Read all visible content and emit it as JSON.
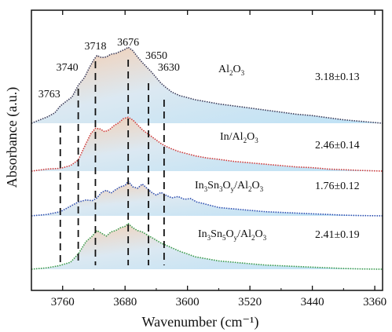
{
  "chart_data": {
    "type": "area",
    "title": "",
    "xlabel": "Wavenumber (cm⁻¹)",
    "ylabel": "Absorbance (a.u.)",
    "xlim": [
      3800,
      3350
    ],
    "x_reversed": true,
    "x_ticks": [
      3760,
      3680,
      3600,
      3520,
      3440,
      3360
    ],
    "y_ticks_shown": false,
    "grid": false,
    "legend": "none",
    "peak_lines": [
      {
        "label": "3763",
        "x": 3763
      },
      {
        "label": "3740",
        "x": 3740
      },
      {
        "label": "3718",
        "x": 3718
      },
      {
        "label": "3676",
        "x": 3676
      },
      {
        "label": "3650",
        "x": 3650
      },
      {
        "label": "3630",
        "x": 3630
      }
    ],
    "series": [
      {
        "name": "Al2O3",
        "name_parts": [
          [
            "Al",
            "n"
          ],
          [
            "2",
            "sub"
          ],
          [
            "O",
            "n"
          ],
          [
            "3",
            "sub"
          ]
        ],
        "value_label": "3.18±0.13",
        "color": "#3c3c5a",
        "x": [
          3800,
          3780,
          3770,
          3763,
          3755,
          3748,
          3740,
          3732,
          3726,
          3720,
          3716,
          3710,
          3704,
          3698,
          3692,
          3686,
          3680,
          3676,
          3670,
          3664,
          3658,
          3652,
          3646,
          3640,
          3634,
          3628,
          3620,
          3610,
          3600,
          3590,
          3575,
          3560,
          3540,
          3520,
          3500,
          3480,
          3460,
          3440,
          3420,
          3400,
          3380,
          3350
        ],
        "y": [
          0.0,
          0.09,
          0.15,
          0.25,
          0.32,
          0.38,
          0.55,
          0.66,
          0.8,
          0.92,
          0.98,
          0.95,
          0.96,
          1.0,
          1.01,
          1.04,
          1.07,
          1.1,
          1.05,
          0.96,
          0.88,
          0.81,
          0.74,
          0.66,
          0.58,
          0.52,
          0.45,
          0.4,
          0.37,
          0.34,
          0.31,
          0.28,
          0.25,
          0.22,
          0.19,
          0.16,
          0.13,
          0.11,
          0.08,
          0.05,
          0.03,
          0.0
        ]
      },
      {
        "name": "In/Al2O3",
        "name_parts": [
          [
            "In/Al",
            "n"
          ],
          [
            "2",
            "sub"
          ],
          [
            "O",
            "n"
          ],
          [
            "3",
            "sub"
          ]
        ],
        "value_label": "2.46±0.14",
        "color": "#d03a3a",
        "x": [
          3800,
          3780,
          3763,
          3750,
          3740,
          3730,
          3724,
          3718,
          3712,
          3706,
          3700,
          3694,
          3688,
          3682,
          3676,
          3670,
          3664,
          3658,
          3652,
          3646,
          3640,
          3634,
          3628,
          3620,
          3610,
          3600,
          3590,
          3575,
          3560,
          3540,
          3520,
          3500,
          3480,
          3460,
          3440,
          3420,
          3400,
          3380,
          3350
        ],
        "y": [
          0.0,
          0.03,
          0.04,
          0.08,
          0.16,
          0.4,
          0.54,
          0.62,
          0.61,
          0.57,
          0.6,
          0.66,
          0.7,
          0.76,
          0.78,
          0.74,
          0.67,
          0.6,
          0.55,
          0.5,
          0.45,
          0.4,
          0.36,
          0.32,
          0.28,
          0.25,
          0.22,
          0.19,
          0.17,
          0.14,
          0.12,
          0.1,
          0.08,
          0.06,
          0.05,
          0.03,
          0.02,
          0.01,
          0.0
        ]
      },
      {
        "name": "In3Sn3Oy/Al2O3",
        "name_parts": [
          [
            "In",
            "n"
          ],
          [
            "3",
            "sub"
          ],
          [
            "Sn",
            "n"
          ],
          [
            "3",
            "sub"
          ],
          [
            "O",
            "n"
          ],
          [
            "y",
            "sub"
          ],
          [
            "/Al",
            "n"
          ],
          [
            "2",
            "sub"
          ],
          [
            "O",
            "n"
          ],
          [
            "3",
            "sub"
          ]
        ],
        "value_label": "1.76±0.12",
        "color": "#2f4fb0",
        "x": [
          3800,
          3780,
          3763,
          3750,
          3740,
          3730,
          3722,
          3716,
          3710,
          3704,
          3698,
          3692,
          3686,
          3680,
          3676,
          3670,
          3664,
          3658,
          3652,
          3646,
          3640,
          3634,
          3628,
          3620,
          3612,
          3604,
          3596,
          3588,
          3580,
          3570,
          3560,
          3540,
          3520,
          3500,
          3480,
          3460,
          3440,
          3420,
          3400,
          3380,
          3350
        ],
        "y": [
          0.0,
          0.02,
          0.06,
          0.14,
          0.2,
          0.23,
          0.22,
          0.26,
          0.34,
          0.37,
          0.33,
          0.38,
          0.42,
          0.44,
          0.5,
          0.42,
          0.4,
          0.46,
          0.4,
          0.34,
          0.3,
          0.34,
          0.3,
          0.26,
          0.28,
          0.24,
          0.25,
          0.2,
          0.18,
          0.15,
          0.12,
          0.1,
          0.08,
          0.06,
          0.05,
          0.04,
          0.03,
          0.02,
          0.01,
          0.005,
          0.0
        ]
      },
      {
        "name": "In3Sn5Oy/Al2O3",
        "name_parts": [
          [
            "In",
            "n"
          ],
          [
            "3",
            "sub"
          ],
          [
            "Sn",
            "n"
          ],
          [
            "5",
            "sub"
          ],
          [
            "O",
            "n"
          ],
          [
            "y",
            "sub"
          ],
          [
            "/Al",
            "n"
          ],
          [
            "2",
            "sub"
          ],
          [
            "O",
            "n"
          ],
          [
            "3",
            "sub"
          ]
        ],
        "value_label": "2.41±0.19",
        "color": "#3a9a4a",
        "x": [
          3800,
          3780,
          3765,
          3750,
          3740,
          3730,
          3722,
          3716,
          3710,
          3704,
          3698,
          3692,
          3686,
          3680,
          3676,
          3670,
          3664,
          3658,
          3652,
          3646,
          3640,
          3634,
          3626,
          3618,
          3610,
          3600,
          3590,
          3575,
          3560,
          3540,
          3520,
          3500,
          3480,
          3460,
          3440,
          3420,
          3400,
          3380,
          3350
        ],
        "y": [
          0.0,
          0.02,
          0.05,
          0.1,
          0.22,
          0.4,
          0.48,
          0.56,
          0.52,
          0.48,
          0.54,
          0.56,
          0.6,
          0.62,
          0.66,
          0.6,
          0.56,
          0.54,
          0.5,
          0.46,
          0.42,
          0.38,
          0.34,
          0.3,
          0.26,
          0.22,
          0.18,
          0.15,
          0.12,
          0.1,
          0.08,
          0.06,
          0.05,
          0.04,
          0.03,
          0.02,
          0.01,
          0.005,
          0.0
        ]
      }
    ]
  }
}
